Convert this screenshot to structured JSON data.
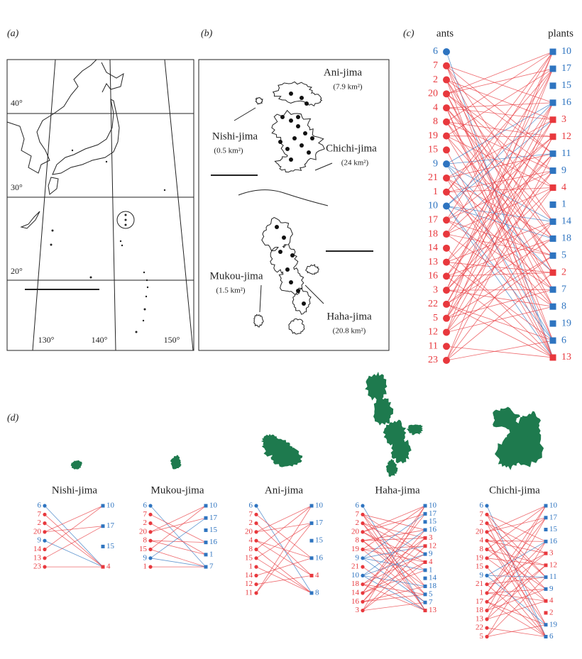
{
  "panel_a": {
    "label": "(a)",
    "lat_labels": [
      "40°",
      "30°",
      "20°"
    ],
    "lon_labels": [
      "130°",
      "140°",
      "150°"
    ]
  },
  "panel_b": {
    "label": "(b)",
    "islands": [
      {
        "name": "Ani-jima",
        "area": "(7.9 km²)"
      },
      {
        "name": "Nishi-jima",
        "area": "(0.5 km²)"
      },
      {
        "name": "Chichi-jima",
        "area": "(24 km²)"
      },
      {
        "name": "Mukou-jima",
        "area": "(1.5 km²)"
      },
      {
        "name": "Haha-jima",
        "area": "(20.8 km²)"
      }
    ]
  },
  "panel_c": {
    "label": "(c)",
    "ants_title": "ants",
    "plants_title": "plants",
    "ants": [
      {
        "label": "6",
        "color": "#2e74c0"
      },
      {
        "label": "7",
        "color": "#e8383d"
      },
      {
        "label": "2",
        "color": "#e8383d"
      },
      {
        "label": "20",
        "color": "#e8383d"
      },
      {
        "label": "4",
        "color": "#e8383d"
      },
      {
        "label": "8",
        "color": "#e8383d"
      },
      {
        "label": "19",
        "color": "#e8383d"
      },
      {
        "label": "15",
        "color": "#e8383d"
      },
      {
        "label": "9",
        "color": "#2e74c0"
      },
      {
        "label": "21",
        "color": "#e8383d"
      },
      {
        "label": "1",
        "color": "#e8383d"
      },
      {
        "label": "10",
        "color": "#2e74c0"
      },
      {
        "label": "17",
        "color": "#e8383d"
      },
      {
        "label": "18",
        "color": "#e8383d"
      },
      {
        "label": "14",
        "color": "#e8383d"
      },
      {
        "label": "13",
        "color": "#e8383d"
      },
      {
        "label": "16",
        "color": "#e8383d"
      },
      {
        "label": "3",
        "color": "#e8383d"
      },
      {
        "label": "22",
        "color": "#e8383d"
      },
      {
        "label": "5",
        "color": "#e8383d"
      },
      {
        "label": "12",
        "color": "#e8383d"
      },
      {
        "label": "11",
        "color": "#e8383d"
      },
      {
        "label": "23",
        "color": "#e8383d"
      }
    ],
    "plants": [
      {
        "label": "10",
        "color": "#2e74c0"
      },
      {
        "label": "17",
        "color": "#2e74c0"
      },
      {
        "label": "15",
        "color": "#2e74c0"
      },
      {
        "label": "16",
        "color": "#2e74c0"
      },
      {
        "label": "3",
        "color": "#e8383d"
      },
      {
        "label": "12",
        "color": "#e8383d"
      },
      {
        "label": "11",
        "color": "#2e74c0"
      },
      {
        "label": "9",
        "color": "#2e74c0"
      },
      {
        "label": "4",
        "color": "#e8383d"
      },
      {
        "label": "1",
        "color": "#2e74c0"
      },
      {
        "label": "14",
        "color": "#2e74c0"
      },
      {
        "label": "18",
        "color": "#2e74c0"
      },
      {
        "label": "5",
        "color": "#2e74c0"
      },
      {
        "label": "2",
        "color": "#e8383d"
      },
      {
        "label": "7",
        "color": "#2e74c0"
      },
      {
        "label": "8",
        "color": "#2e74c0"
      },
      {
        "label": "19",
        "color": "#2e74c0"
      },
      {
        "label": "6",
        "color": "#2e74c0"
      },
      {
        "label": "13",
        "color": "#e8383d"
      }
    ]
  },
  "panel_d": {
    "label": "(d)",
    "networks": [
      {
        "name": "Nishi-jima",
        "ants": [
          {
            "label": "6",
            "color": "#2e74c0"
          },
          {
            "label": "7",
            "color": "#e8383d"
          },
          {
            "label": "2",
            "color": "#e8383d"
          },
          {
            "label": "20",
            "color": "#e8383d"
          },
          {
            "label": "9",
            "color": "#2e74c0"
          },
          {
            "label": "14",
            "color": "#e8383d"
          },
          {
            "label": "13",
            "color": "#e8383d"
          },
          {
            "label": "23",
            "color": "#e8383d"
          }
        ],
        "plants": [
          {
            "label": "10",
            "color": "#2e74c0"
          },
          {
            "label": "17",
            "color": "#2e74c0"
          },
          {
            "label": "15",
            "color": "#2e74c0"
          },
          {
            "label": "4",
            "color": "#e8383d"
          }
        ]
      },
      {
        "name": "Mukou-jima",
        "ants": [
          {
            "label": "6",
            "color": "#2e74c0"
          },
          {
            "label": "7",
            "color": "#e8383d"
          },
          {
            "label": "2",
            "color": "#e8383d"
          },
          {
            "label": "20",
            "color": "#e8383d"
          },
          {
            "label": "8",
            "color": "#e8383d"
          },
          {
            "label": "15",
            "color": "#e8383d"
          },
          {
            "label": "9",
            "color": "#2e74c0"
          },
          {
            "label": "1",
            "color": "#e8383d"
          }
        ],
        "plants": [
          {
            "label": "10",
            "color": "#2e74c0"
          },
          {
            "label": "17",
            "color": "#2e74c0"
          },
          {
            "label": "15",
            "color": "#2e74c0"
          },
          {
            "label": "16",
            "color": "#2e74c0"
          },
          {
            "label": "1",
            "color": "#2e74c0"
          },
          {
            "label": "7",
            "color": "#2e74c0"
          }
        ]
      },
      {
        "name": "Ani-jima",
        "ants": [
          {
            "label": "6",
            "color": "#2e74c0"
          },
          {
            "label": "7",
            "color": "#e8383d"
          },
          {
            "label": "2",
            "color": "#e8383d"
          },
          {
            "label": "20",
            "color": "#e8383d"
          },
          {
            "label": "4",
            "color": "#e8383d"
          },
          {
            "label": "8",
            "color": "#e8383d"
          },
          {
            "label": "15",
            "color": "#e8383d"
          },
          {
            "label": "1",
            "color": "#e8383d"
          },
          {
            "label": "14",
            "color": "#e8383d"
          },
          {
            "label": "12",
            "color": "#e8383d"
          },
          {
            "label": "11",
            "color": "#e8383d"
          }
        ],
        "plants": [
          {
            "label": "10",
            "color": "#2e74c0"
          },
          {
            "label": "17",
            "color": "#2e74c0"
          },
          {
            "label": "15",
            "color": "#2e74c0"
          },
          {
            "label": "16",
            "color": "#2e74c0"
          },
          {
            "label": "4",
            "color": "#e8383d"
          },
          {
            "label": "8",
            "color": "#2e74c0"
          }
        ]
      },
      {
        "name": "Haha-jima",
        "ants": [
          {
            "label": "6",
            "color": "#2e74c0"
          },
          {
            "label": "7",
            "color": "#e8383d"
          },
          {
            "label": "2",
            "color": "#e8383d"
          },
          {
            "label": "20",
            "color": "#e8383d"
          },
          {
            "label": "8",
            "color": "#e8383d"
          },
          {
            "label": "19",
            "color": "#e8383d"
          },
          {
            "label": "9",
            "color": "#2e74c0"
          },
          {
            "label": "21",
            "color": "#e8383d"
          },
          {
            "label": "10",
            "color": "#2e74c0"
          },
          {
            "label": "18",
            "color": "#e8383d"
          },
          {
            "label": "14",
            "color": "#e8383d"
          },
          {
            "label": "16",
            "color": "#e8383d"
          },
          {
            "label": "3",
            "color": "#e8383d"
          }
        ],
        "plants": [
          {
            "label": "10",
            "color": "#2e74c0"
          },
          {
            "label": "17",
            "color": "#2e74c0"
          },
          {
            "label": "15",
            "color": "#2e74c0"
          },
          {
            "label": "16",
            "color": "#2e74c0"
          },
          {
            "label": "3",
            "color": "#e8383d"
          },
          {
            "label": "12",
            "color": "#e8383d"
          },
          {
            "label": "9",
            "color": "#2e74c0"
          },
          {
            "label": "4",
            "color": "#e8383d"
          },
          {
            "label": "1",
            "color": "#2e74c0"
          },
          {
            "label": "14",
            "color": "#2e74c0"
          },
          {
            "label": "18",
            "color": "#2e74c0"
          },
          {
            "label": "5",
            "color": "#2e74c0"
          },
          {
            "label": "7",
            "color": "#2e74c0"
          },
          {
            "label": "13",
            "color": "#e8383d"
          }
        ]
      },
      {
        "name": "Chichi-jima",
        "ants": [
          {
            "label": "6",
            "color": "#2e74c0"
          },
          {
            "label": "7",
            "color": "#e8383d"
          },
          {
            "label": "2",
            "color": "#e8383d"
          },
          {
            "label": "20",
            "color": "#e8383d"
          },
          {
            "label": "4",
            "color": "#e8383d"
          },
          {
            "label": "8",
            "color": "#e8383d"
          },
          {
            "label": "19",
            "color": "#e8383d"
          },
          {
            "label": "15",
            "color": "#e8383d"
          },
          {
            "label": "9",
            "color": "#2e74c0"
          },
          {
            "label": "21",
            "color": "#e8383d"
          },
          {
            "label": "1",
            "color": "#e8383d"
          },
          {
            "label": "17",
            "color": "#e8383d"
          },
          {
            "label": "18",
            "color": "#e8383d"
          },
          {
            "label": "13",
            "color": "#e8383d"
          },
          {
            "label": "22",
            "color": "#e8383d"
          },
          {
            "label": "5",
            "color": "#e8383d"
          }
        ],
        "plants": [
          {
            "label": "10",
            "color": "#2e74c0"
          },
          {
            "label": "17",
            "color": "#2e74c0"
          },
          {
            "label": "15",
            "color": "#2e74c0"
          },
          {
            "label": "16",
            "color": "#2e74c0"
          },
          {
            "label": "3",
            "color": "#e8383d"
          },
          {
            "label": "12",
            "color": "#e8383d"
          },
          {
            "label": "11",
            "color": "#2e74c0"
          },
          {
            "label": "9",
            "color": "#2e74c0"
          },
          {
            "label": "4",
            "color": "#e8383d"
          },
          {
            "label": "2",
            "color": "#e8383d"
          },
          {
            "label": "19",
            "color": "#2e74c0"
          },
          {
            "label": "6",
            "color": "#2e74c0"
          }
        ]
      }
    ]
  }
}
